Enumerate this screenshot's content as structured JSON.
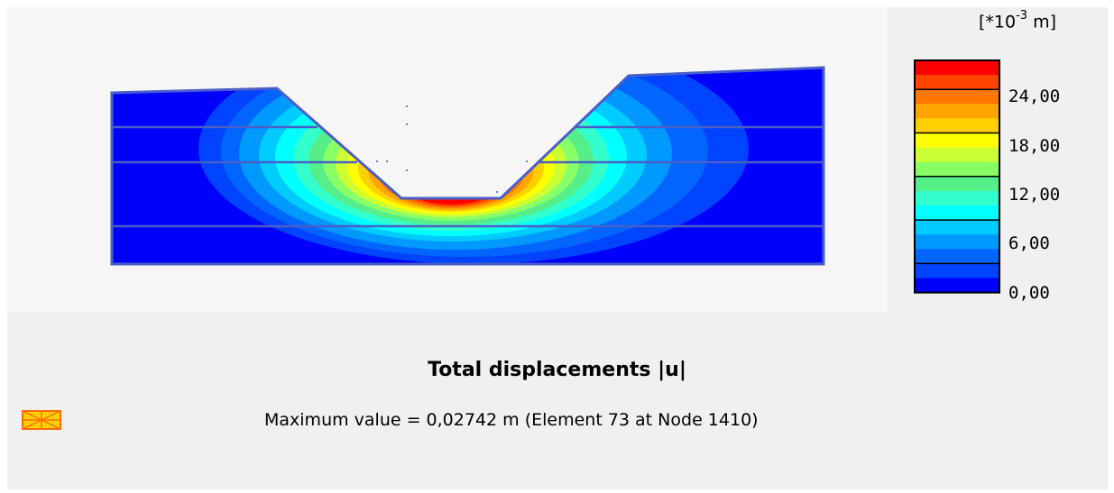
{
  "legend": {
    "unit_prefix": "[*10",
    "unit_exponent": "-3",
    "unit_suffix": " m]",
    "ticks": [
      "24,00",
      "18,00",
      "12,00",
      "6,00",
      "0,00"
    ],
    "colors": [
      "#ff0000",
      "#ff4400",
      "#ff7700",
      "#ffa500",
      "#ffd000",
      "#ffff00",
      "#ccff33",
      "#88ff66",
      "#55ee88",
      "#33ffcc",
      "#00ffff",
      "#00ccff",
      "#0099ff",
      "#0066ff",
      "#0044ff",
      "#0000ff"
    ]
  },
  "plot": {
    "title": "Total displacements |u|",
    "max_value_text": "Maximum value = 0,02742 m (Element 73 at Node 1410)"
  },
  "icons": {
    "max_marker": "max-value-marker-icon"
  }
}
